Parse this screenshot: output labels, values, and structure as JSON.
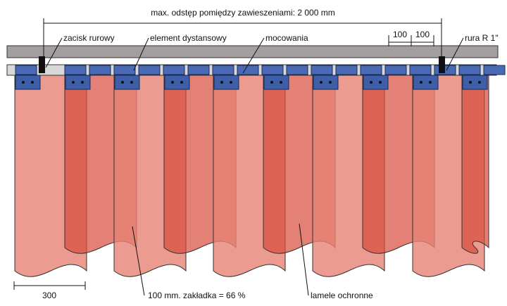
{
  "dimensions": {
    "max_spacing": "max. odstęp pomiędzy zawieszeniami: 2 000 mm",
    "spacer_left": "100",
    "spacer_right": "100",
    "strip_width": "300"
  },
  "labels": {
    "pipe_clamp": "zacisk rurowy",
    "spacer": "element dystansowy",
    "mounting": "mocowania",
    "pipe": "rura R 1\"",
    "overlap": "100 mm. zakładka = 66 %",
    "strips": "lamele ochronne"
  }
}
